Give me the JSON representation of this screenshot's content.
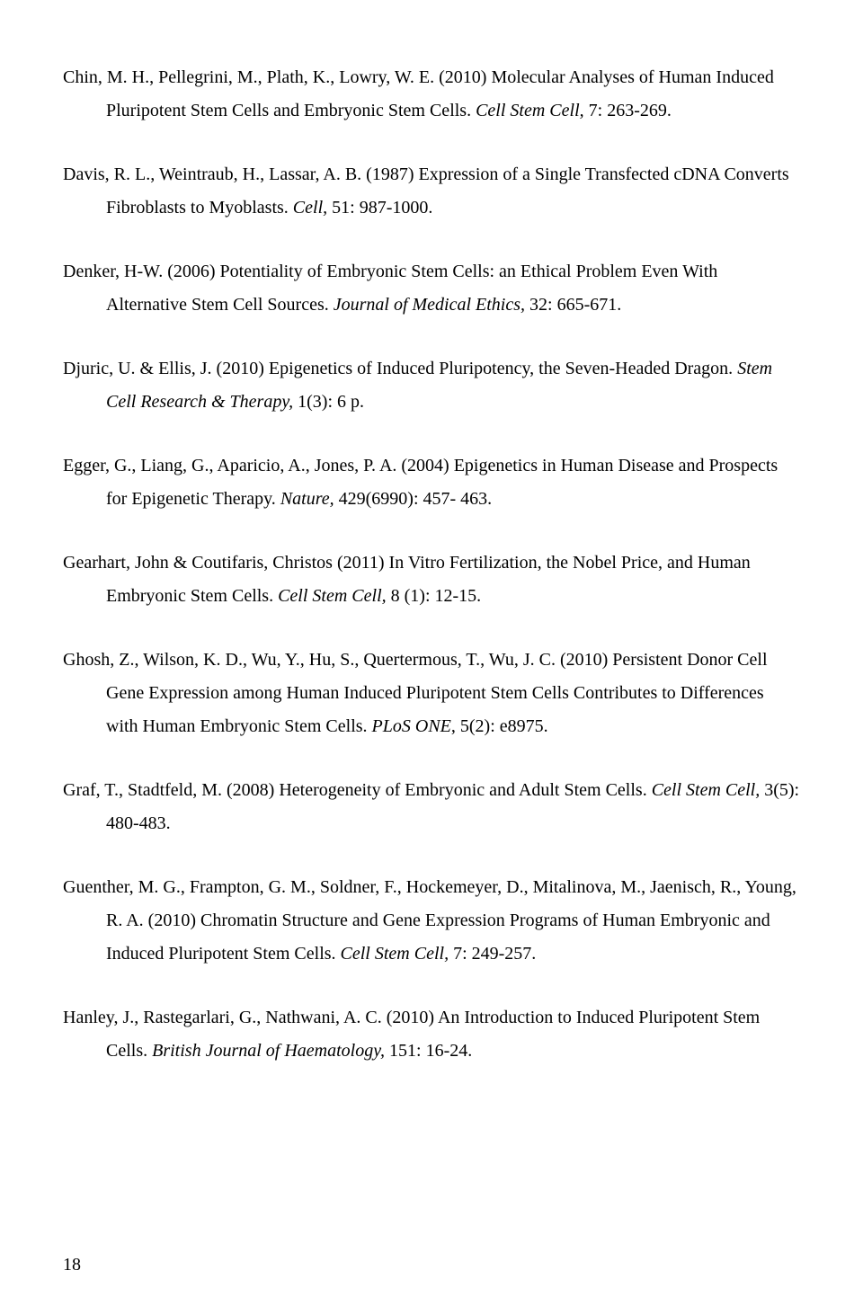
{
  "page_number": "18",
  "references": [
    {
      "pre": "Chin, M. H., Pellegrini, M., Plath, K., Lowry, W. E. (2010) Molecular Analyses of Human Induced Pluripotent Stem Cells and Embryonic Stem Cells. ",
      "ital": "Cell Stem Cell,",
      "post": " 7: 263-269."
    },
    {
      "pre": "Davis, R. L., Weintraub, H., Lassar, A. B. (1987) Expression of a Single Transfected cDNA Converts Fibroblasts to Myoblasts. ",
      "ital": "Cell,",
      "post": " 51: 987-1000."
    },
    {
      "pre": "Denker, H-W. (2006) Potentiality of Embryonic Stem Cells: an Ethical Problem Even With Alternative Stem Cell Sources. ",
      "ital": "Journal of Medical Ethics,",
      "post": " 32: 665-671."
    },
    {
      "pre": "Djuric, U. & Ellis, J. (2010) Epigenetics of Induced Pluripotency, the Seven-Headed Dragon. ",
      "ital": "Stem Cell Research & Therapy,",
      "post": " 1(3): 6 p."
    },
    {
      "pre": "Egger, G., Liang, G., Aparicio, A., Jones, P. A. (2004) Epigenetics in Human Disease and Prospects for Epigenetic Therapy. ",
      "ital": "Nature,",
      "post": " 429(6990): 457- 463."
    },
    {
      "pre": "Gearhart, John & Coutifaris, Christos (2011) In Vitro Fertilization, the Nobel Price, and Human Embryonic Stem Cells. ",
      "ital": "Cell Stem Cell,",
      "post": " 8 (1): 12-15."
    },
    {
      "pre": "Ghosh, Z., Wilson, K. D., Wu, Y., Hu, S., Quertermous, T., Wu, J. C. (2010) Persistent Donor Cell Gene Expression among Human Induced Pluripotent Stem Cells Contributes to Differences with Human Embryonic Stem Cells. ",
      "ital": "PLoS ONE",
      "post": ", 5(2): e8975."
    },
    {
      "pre": "Graf, T., Stadtfeld, M. (2008) Heterogeneity of Embryonic and Adult Stem Cells. ",
      "ital": "Cell Stem Cell,",
      "post": " 3(5): 480-483."
    },
    {
      "pre": "Guenther, M. G., Frampton, G. M., Soldner, F., Hockemeyer, D., Mitalinova, M., Jaenisch, R., Young, R. A. (2010) Chromatin Structure and Gene Expression Programs of Human Embryonic and Induced Pluripotent Stem Cells. ",
      "ital": "Cell Stem Cell,",
      "post": " 7: 249-257."
    },
    {
      "pre": "Hanley, J., Rastegarlari, G., Nathwani, A. C. (2010) An Introduction to Induced Pluripotent Stem Cells. ",
      "ital": "British Journal of Haematology,",
      "post": " 151: 16-24."
    }
  ]
}
